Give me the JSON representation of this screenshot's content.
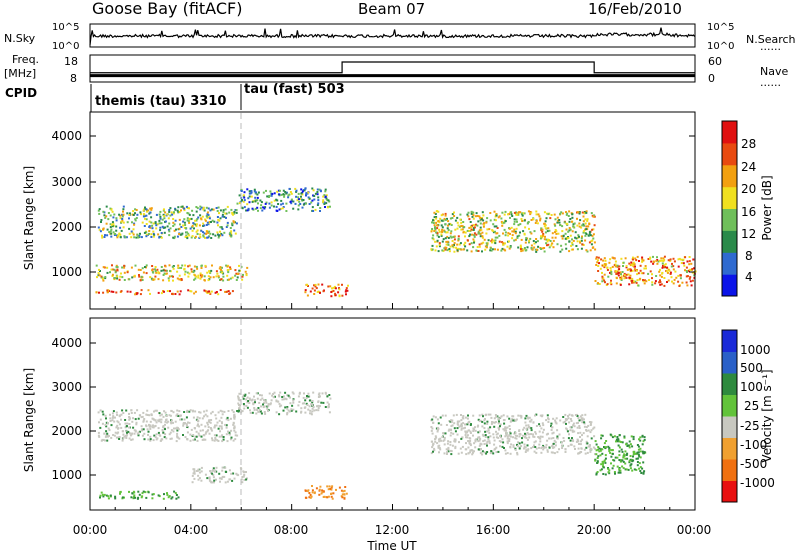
{
  "header": {
    "station": "Goose Bay (fitACF)",
    "beam": "Beam 07",
    "date": "16/Feb/2010"
  },
  "left_labels": {
    "nsky": "N.Sky",
    "freq_line1": "Freq.",
    "freq_line2": "[MHz]",
    "cpid": "CPID"
  },
  "right_labels": {
    "nsearch": "N.Search",
    "nave": "Nave",
    "dots": "......"
  },
  "noise_panel": {
    "left_ticks": [
      "10^5",
      "10^0"
    ],
    "right_ticks": [
      "10^5",
      "10^0"
    ]
  },
  "freq_panel": {
    "left_ticks": [
      "18",
      "8"
    ],
    "right_ticks": [
      "60",
      "0"
    ]
  },
  "cpid": {
    "first": "themis (tau) 3310",
    "second": "tau (fast) 503"
  },
  "power_panel": {
    "ylabel": "Slant Range [km]",
    "yticks": [
      "4000",
      "3000",
      "2000",
      "1000"
    ],
    "colorbar_label": "Power [dB]",
    "colorbar_ticks": [
      "28",
      "24",
      "20",
      "16",
      "12",
      "8",
      "4"
    ],
    "colors": [
      "#0b14e8",
      "#2f6ad0",
      "#2a8a4a",
      "#6fbf5a",
      "#f0e020",
      "#f2a010",
      "#e84a10",
      "#e01010"
    ]
  },
  "velocity_panel": {
    "ylabel": "Slant Range [km]",
    "yticks": [
      "4000",
      "3000",
      "2000",
      "1000"
    ],
    "colorbar_label": "Velocity [m s⁻¹]",
    "colorbar_ticks": [
      "1000",
      "500",
      "100",
      "25",
      "-25",
      "-100",
      "-500",
      "-1000"
    ],
    "colors": [
      "#1a2ad8",
      "#2a60c8",
      "#2e8a3e",
      "#62c33a",
      "#c8c8c0",
      "#f0a030",
      "#f07010",
      "#e81010"
    ]
  },
  "x_axis": {
    "ticks": [
      "00:00",
      "04:00",
      "08:00",
      "12:00",
      "16:00",
      "20:00",
      "00:00"
    ],
    "label": "Time UT"
  },
  "chart_data": [
    {
      "type": "line",
      "x": [
        0,
        24
      ],
      "ylim_log10": [
        0,
        5
      ],
      "series": []
    },
    {
      "type": "line",
      "ylim_left": [
        8,
        18
      ],
      "ylim_right": [
        0,
        60
      ],
      "series": [
        {
          "values": [
            [
              0,
              10
            ],
            [
              24,
              10
            ]
          ]
        },
        {
          "values": [
            [
              0,
              22
            ],
            [
              10,
              22
            ],
            [
              10,
              60
            ],
            [
              20,
              60
            ],
            [
              20,
              22
            ],
            [
              24,
              22
            ]
          ]
        }
      ]
    },
    {
      "type": "heatmap",
      "xlim_hours": [
        0,
        24
      ],
      "ylim_km": [
        180,
        4500
      ],
      "zlim": [
        0,
        30
      ],
      "regions": [
        {
          "t": [
            0.2,
            5.8
          ],
          "r": [
            520,
            620
          ],
          "z": 26
        },
        {
          "t": [
            0.2,
            6.2
          ],
          "r": [
            820,
            1160
          ],
          "z": 18
        },
        {
          "t": [
            0.3,
            5.8
          ],
          "r": [
            1750,
            2450
          ],
          "z": 12
        },
        {
          "t": [
            5.8,
            9.5
          ],
          "r": [
            2350,
            2850
          ],
          "z": 8
        },
        {
          "t": [
            8.5,
            10.2
          ],
          "r": [
            480,
            740
          ],
          "z": 24
        },
        {
          "t": [
            13.5,
            20
          ],
          "r": [
            1450,
            2350
          ],
          "z": 16
        },
        {
          "t": [
            20,
            24
          ],
          "r": [
            700,
            1350
          ],
          "z": 22
        }
      ]
    },
    {
      "type": "heatmap",
      "xlim_hours": [
        0,
        24
      ],
      "ylim_km": [
        180,
        4500
      ],
      "zlim": [
        -1000,
        1000
      ],
      "regions": [
        {
          "t": [
            0.3,
            3.5
          ],
          "r": [
            450,
            620
          ],
          "v": 110
        },
        {
          "t": [
            0.3,
            5.8
          ],
          "r": [
            1750,
            2450
          ],
          "v": 0
        },
        {
          "t": [
            4.0,
            6.2
          ],
          "r": [
            820,
            1160
          ],
          "v": 0
        },
        {
          "t": [
            5.8,
            9.5
          ],
          "r": [
            2350,
            2850
          ],
          "v": 0
        },
        {
          "t": [
            8.5,
            10.2
          ],
          "r": [
            450,
            750
          ],
          "v": -150
        },
        {
          "t": [
            13.5,
            20
          ],
          "r": [
            1450,
            2350
          ],
          "v": 0
        },
        {
          "t": [
            20,
            22
          ],
          "r": [
            1000,
            1900
          ],
          "v": 110
        }
      ]
    }
  ]
}
